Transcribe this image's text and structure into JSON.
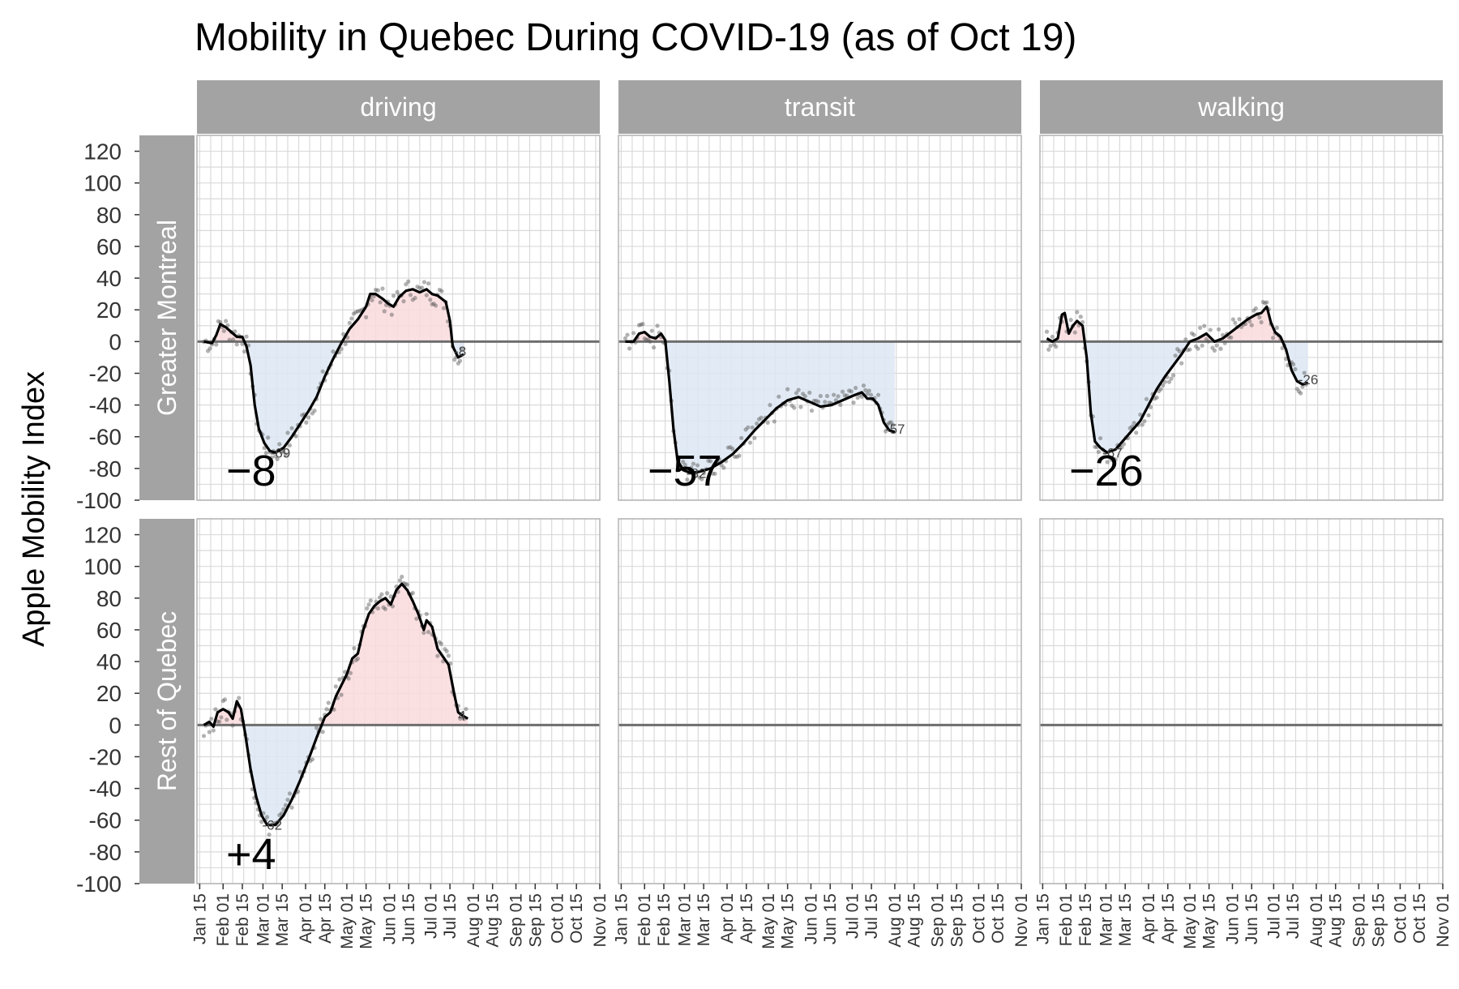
{
  "chart_data": {
    "type": "line",
    "title": "Mobility in Quebec During COVID-19 (as of Oct 19)",
    "ylabel": "Apple Mobility Index",
    "xlabel": "",
    "ylim": [
      -100,
      130
    ],
    "y_ticks": [
      120,
      100,
      80,
      60,
      40,
      20,
      0,
      -20,
      -40,
      -60,
      -80,
      -100
    ],
    "x_tick_labels": [
      "Jan 15",
      "Feb 01",
      "Feb 15",
      "Mar 01",
      "Mar 15",
      "Apr 01",
      "Apr 15",
      "May 01",
      "May 15",
      "Jun 01",
      "Jun 15",
      "Jul 01",
      "Jul 15",
      "Aug 01",
      "Aug 15",
      "Sep 01",
      "Sep 15",
      "Oct 01",
      "Oct 15",
      "Nov 01"
    ],
    "x_tick_days": [
      15,
      32,
      46,
      61,
      75,
      92,
      106,
      122,
      136,
      153,
      167,
      183,
      197,
      214,
      228,
      245,
      259,
      275,
      289,
      306
    ],
    "xlim_days": [
      13,
      306
    ],
    "x_unit_note": "day of year 2020",
    "columns": [
      "driving",
      "transit",
      "walking"
    ],
    "rows": [
      "Greater Montreal",
      "Rest of Quebec"
    ],
    "grid": true,
    "colors": {
      "strip_bg": "#a3a3a3",
      "strip_text": "#ffffff",
      "above_fill": "#fadadd",
      "below_fill": "#dde7f3",
      "line": "#000000",
      "points": "#555555",
      "zero_line": "#6e6e6e",
      "grid": "#dadada",
      "panel_border": "#b3b3b3"
    },
    "panels": [
      {
        "row": "Greater Montreal",
        "column": "driving",
        "current_label": "−8",
        "min_label": "-69",
        "end_label": "-8",
        "series": [
          [
            18,
            0
          ],
          [
            24,
            -1
          ],
          [
            27,
            4
          ],
          [
            30,
            11
          ],
          [
            34,
            9
          ],
          [
            38,
            6
          ],
          [
            42,
            3
          ],
          [
            46,
            3
          ],
          [
            49,
            -3
          ],
          [
            52,
            -15
          ],
          [
            55,
            -40
          ],
          [
            58,
            -55
          ],
          [
            62,
            -64
          ],
          [
            66,
            -69
          ],
          [
            70,
            -70
          ],
          [
            76,
            -67
          ],
          [
            82,
            -60
          ],
          [
            88,
            -52
          ],
          [
            94,
            -44
          ],
          [
            100,
            -35
          ],
          [
            106,
            -22
          ],
          [
            112,
            -11
          ],
          [
            118,
            -1
          ],
          [
            124,
            8
          ],
          [
            130,
            14
          ],
          [
            136,
            22
          ],
          [
            139,
            30
          ],
          [
            143,
            30
          ],
          [
            148,
            27
          ],
          [
            152,
            24
          ],
          [
            156,
            22
          ],
          [
            160,
            28
          ],
          [
            165,
            32
          ],
          [
            170,
            33
          ],
          [
            175,
            31
          ],
          [
            180,
            33
          ],
          [
            184,
            30
          ],
          [
            188,
            29
          ],
          [
            191,
            27
          ],
          [
            194,
            25
          ],
          [
            197,
            13
          ],
          [
            199,
            -3
          ],
          [
            203,
            -10
          ],
          [
            207,
            -8
          ]
        ]
      },
      {
        "row": "Greater Montreal",
        "column": "transit",
        "current_label": "−57",
        "min_label": "-82",
        "end_label": "-57",
        "series": [
          [
            18,
            0
          ],
          [
            24,
            0
          ],
          [
            28,
            5
          ],
          [
            32,
            6
          ],
          [
            36,
            3
          ],
          [
            40,
            2
          ],
          [
            44,
            5
          ],
          [
            47,
            1
          ],
          [
            50,
            -25
          ],
          [
            53,
            -55
          ],
          [
            56,
            -75
          ],
          [
            60,
            -81
          ],
          [
            66,
            -83
          ],
          [
            72,
            -82
          ],
          [
            80,
            -80
          ],
          [
            88,
            -76
          ],
          [
            96,
            -71
          ],
          [
            104,
            -64
          ],
          [
            112,
            -56
          ],
          [
            120,
            -49
          ],
          [
            128,
            -42
          ],
          [
            136,
            -37
          ],
          [
            144,
            -35
          ],
          [
            152,
            -38
          ],
          [
            160,
            -41
          ],
          [
            168,
            -40
          ],
          [
            176,
            -37
          ],
          [
            184,
            -34
          ],
          [
            190,
            -32
          ],
          [
            194,
            -36
          ],
          [
            198,
            -36
          ],
          [
            202,
            -40
          ],
          [
            206,
            -51
          ],
          [
            210,
            -56
          ],
          [
            214,
            -57
          ]
        ]
      },
      {
        "row": "Greater Montreal",
        "column": "walking",
        "current_label": "−26",
        "min_label": "-67",
        "end_label": "-26",
        "series": [
          [
            18,
            2
          ],
          [
            22,
            0
          ],
          [
            26,
            2
          ],
          [
            29,
            17
          ],
          [
            31,
            18
          ],
          [
            34,
            5
          ],
          [
            37,
            10
          ],
          [
            40,
            13
          ],
          [
            44,
            10
          ],
          [
            47,
            -10
          ],
          [
            50,
            -45
          ],
          [
            53,
            -63
          ],
          [
            57,
            -67
          ],
          [
            62,
            -70
          ],
          [
            68,
            -68
          ],
          [
            74,
            -62
          ],
          [
            80,
            -56
          ],
          [
            86,
            -50
          ],
          [
            92,
            -40
          ],
          [
            98,
            -30
          ],
          [
            104,
            -22
          ],
          [
            110,
            -15
          ],
          [
            116,
            -8
          ],
          [
            122,
            0
          ],
          [
            128,
            2
          ],
          [
            134,
            5
          ],
          [
            140,
            0
          ],
          [
            146,
            2
          ],
          [
            152,
            6
          ],
          [
            158,
            10
          ],
          [
            164,
            14
          ],
          [
            170,
            17
          ],
          [
            174,
            18
          ],
          [
            178,
            22
          ],
          [
            181,
            12
          ],
          [
            184,
            6
          ],
          [
            188,
            3
          ],
          [
            192,
            -5
          ],
          [
            196,
            -18
          ],
          [
            200,
            -25
          ],
          [
            204,
            -27
          ],
          [
            208,
            -26
          ]
        ]
      },
      {
        "row": "Rest of Quebec",
        "column": "driving",
        "current_label": "+4",
        "min_label": "-62",
        "end_label": "4",
        "series": [
          [
            18,
            0
          ],
          [
            22,
            2
          ],
          [
            25,
            -1
          ],
          [
            28,
            8
          ],
          [
            32,
            10
          ],
          [
            36,
            8
          ],
          [
            39,
            4
          ],
          [
            42,
            15
          ],
          [
            45,
            10
          ],
          [
            48,
            -5
          ],
          [
            52,
            -28
          ],
          [
            56,
            -45
          ],
          [
            60,
            -57
          ],
          [
            64,
            -63
          ],
          [
            70,
            -63
          ],
          [
            76,
            -57
          ],
          [
            82,
            -47
          ],
          [
            88,
            -35
          ],
          [
            94,
            -22
          ],
          [
            100,
            -8
          ],
          [
            106,
            5
          ],
          [
            110,
            8
          ],
          [
            114,
            18
          ],
          [
            118,
            25
          ],
          [
            122,
            32
          ],
          [
            126,
            42
          ],
          [
            130,
            45
          ],
          [
            134,
            60
          ],
          [
            138,
            70
          ],
          [
            142,
            75
          ],
          [
            146,
            78
          ],
          [
            150,
            80
          ],
          [
            154,
            76
          ],
          [
            158,
            85
          ],
          [
            162,
            89
          ],
          [
            166,
            85
          ],
          [
            170,
            78
          ],
          [
            174,
            70
          ],
          [
            178,
            60
          ],
          [
            180,
            66
          ],
          [
            184,
            62
          ],
          [
            188,
            48
          ],
          [
            192,
            43
          ],
          [
            196,
            38
          ],
          [
            200,
            20
          ],
          [
            203,
            8
          ],
          [
            206,
            6
          ],
          [
            210,
            4
          ]
        ]
      }
    ]
  }
}
